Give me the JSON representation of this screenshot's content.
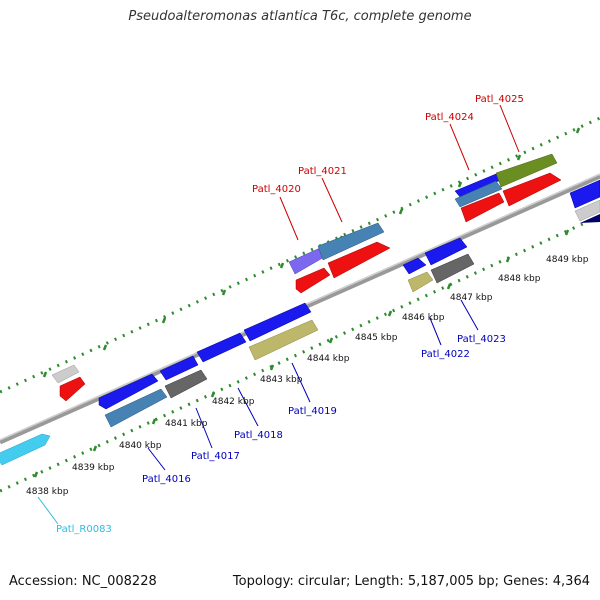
{
  "title": "Pseudoalteromonas atlantica T6c, complete genome",
  "footer": {
    "accession": "Accession: NC_008228",
    "summary": "Topology: circular; Length: 5,187,005 bp; Genes: 4,364"
  },
  "colors": {
    "backbone": "#8f8f8f",
    "tick": "#2e8b2e",
    "label_top": "#cc0000",
    "label_bottom": "#0000bb",
    "label_rna": "#33bbdd"
  },
  "kbp_ticks": [
    "4838 kbp",
    "4839 kbp",
    "4840 kbp",
    "4841 kbp",
    "4842 kbp",
    "4843 kbp",
    "4844 kbp",
    "4845 kbp",
    "4846 kbp",
    "4847 kbp",
    "4848 kbp",
    "4849 kbp"
  ],
  "top_labels": [
    "Patl_4020",
    "Patl_4021",
    "Patl_4024",
    "Patl_4025"
  ],
  "bottom_labels": [
    "Patl_4016",
    "Patl_4017",
    "Patl_4018",
    "Patl_4019",
    "Patl_4022",
    "Patl_4023"
  ],
  "rna_label": "Patl_R0083"
}
